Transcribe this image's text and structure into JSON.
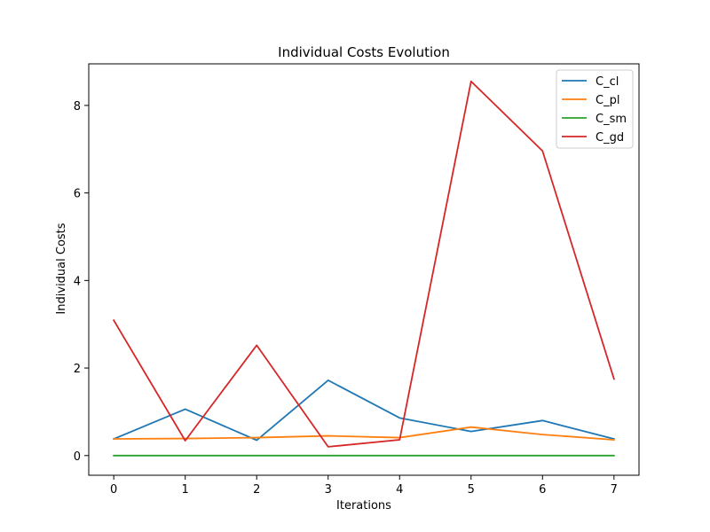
{
  "chart_data": {
    "type": "line",
    "title": "Individual Costs Evolution",
    "xlabel": "Iterations",
    "ylabel": "Individual Costs",
    "x": [
      0,
      1,
      2,
      3,
      4,
      5,
      6,
      7
    ],
    "xlim": [
      -0.35,
      7.35
    ],
    "ylim": [
      -0.45,
      8.95
    ],
    "xticks": [
      0,
      1,
      2,
      3,
      4,
      5,
      6,
      7
    ],
    "yticks": [
      0,
      2,
      4,
      6,
      8
    ],
    "grid": false,
    "legend_position": "top-right",
    "series": [
      {
        "name": "C_cl",
        "color": "#1f77b4",
        "values": [
          0.38,
          1.06,
          0.35,
          1.72,
          0.86,
          0.55,
          0.8,
          0.38
        ]
      },
      {
        "name": "C_pl",
        "color": "#ff7f0e",
        "values": [
          0.38,
          0.39,
          0.41,
          0.45,
          0.41,
          0.65,
          0.48,
          0.36
        ]
      },
      {
        "name": "C_sm",
        "color": "#2ca02c",
        "values": [
          0.0,
          0.0,
          0.0,
          0.0,
          0.0,
          0.0,
          0.0,
          0.0
        ]
      },
      {
        "name": "C_gd",
        "color": "#d62728",
        "values": [
          3.09,
          0.34,
          2.52,
          0.2,
          0.36,
          8.55,
          6.96,
          1.75
        ]
      }
    ]
  }
}
